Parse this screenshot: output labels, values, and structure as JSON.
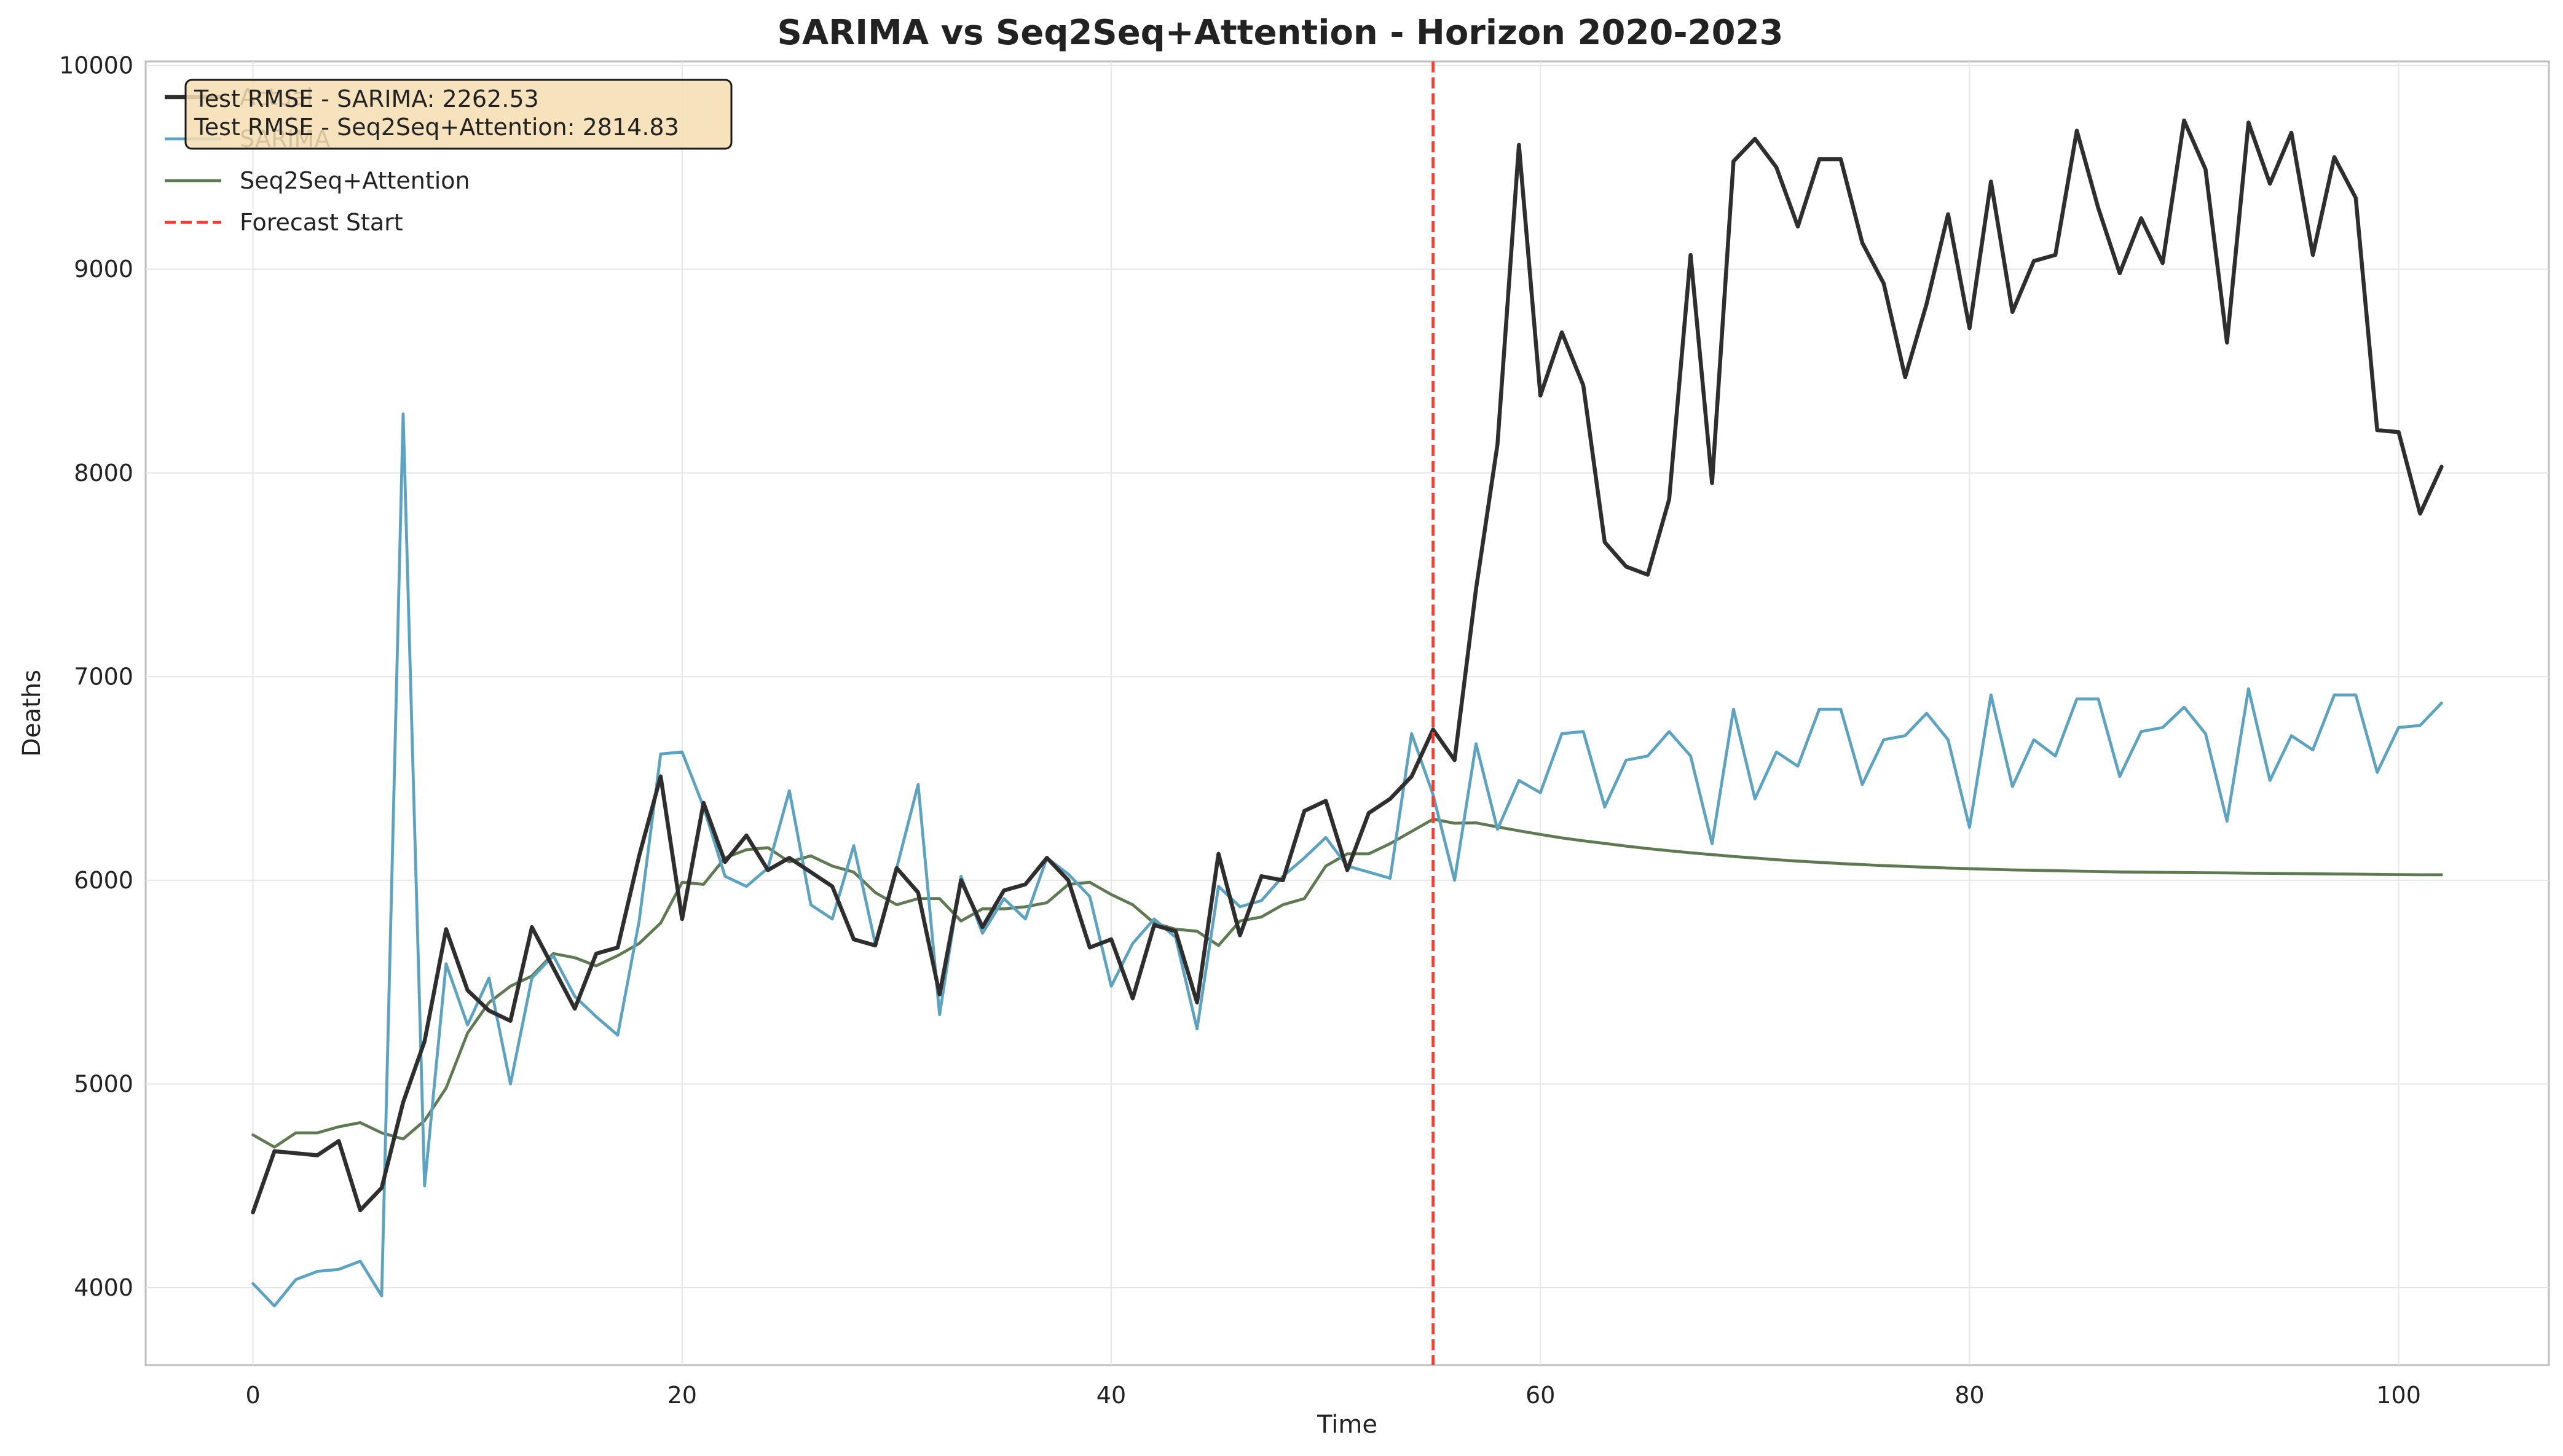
{
  "chart_data": {
    "type": "line",
    "title": "SARIMA vs Seq2Seq+Attention - Horizon 2020-2023",
    "xlabel": "Time",
    "ylabel": "Deaths",
    "xlim": [
      -5,
      107
    ],
    "ylim": [
      3620,
      10020
    ],
    "xticks": [
      0,
      20,
      40,
      60,
      80,
      100
    ],
    "yticks": [
      4000,
      5000,
      6000,
      7000,
      8000,
      9000,
      10000
    ],
    "grid": true,
    "legend_position": "top-left",
    "info_box": [
      "Test RMSE - SARIMA: 2262.53",
      "Test RMSE - Seq2Seq+Attention: 2814.83"
    ],
    "vline": {
      "x": 55,
      "name": "Forecast Start",
      "color": "#ff3b30",
      "style": "dashed"
    },
    "series": [
      {
        "name": "Actual",
        "color": "#2e2e2e",
        "values": [
          4370,
          4670,
          4660,
          4650,
          4720,
          4380,
          4490,
          4910,
          5210,
          5760,
          5460,
          5360,
          5310,
          5770,
          5570,
          5370,
          5640,
          5670,
          6120,
          6510,
          5810,
          6380,
          6090,
          6220,
          6050,
          6110,
          6040,
          5970,
          5710,
          5680,
          6060,
          5940,
          5440,
          6000,
          5770,
          5950,
          5980,
          6110,
          6000,
          5670,
          5710,
          5420,
          5780,
          5750,
          5400,
          6130,
          5730,
          6020,
          6000,
          6340,
          6390,
          6050,
          6330,
          6400,
          6510,
          6740,
          6590,
          7430,
          8140,
          9610,
          8380,
          8690,
          8430,
          7660,
          7540,
          7500,
          7870,
          9070,
          7950,
          9530,
          9640,
          9500,
          9210,
          9540,
          9540,
          9130,
          8930,
          8470,
          8830,
          9270,
          8710,
          9430,
          8790,
          9040,
          9070,
          9680,
          9300,
          8980,
          9250,
          9030,
          9730,
          9490,
          8640,
          9720,
          9420,
          9670,
          9070,
          9550,
          9350,
          8210,
          8200,
          7800,
          8030
        ]
      },
      {
        "name": "SARIMA",
        "color": "#5ba3c0",
        "values": [
          4020,
          3910,
          4040,
          4080,
          4090,
          4130,
          3960,
          8290,
          4500,
          5590,
          5290,
          5520,
          5000,
          5520,
          5630,
          5430,
          5330,
          5240,
          5800,
          6620,
          6630,
          6360,
          6020,
          5970,
          6060,
          6440,
          5880,
          5810,
          6170,
          5690,
          6060,
          6470,
          5340,
          6020,
          5740,
          5910,
          5810,
          6110,
          6030,
          5920,
          5480,
          5690,
          5810,
          5720,
          5270,
          5970,
          5870,
          5900,
          6020,
          6110,
          6210,
          6070,
          6040,
          6010,
          6720,
          6420,
          6000,
          6670,
          6250,
          6490,
          6430,
          6720,
          6730,
          6360,
          6590,
          6610,
          6730,
          6610,
          6180,
          6840,
          6400,
          6630,
          6560,
          6840,
          6840,
          6470,
          6690,
          6710,
          6820,
          6690,
          6260,
          6910,
          6460,
          6690,
          6610,
          6890,
          6890,
          6510,
          6730,
          6750,
          6850,
          6720,
          6290,
          6940,
          6490,
          6710,
          6640,
          6910,
          6910,
          6530,
          6750,
          6760,
          6870
        ]
      },
      {
        "name": "Seq2Seq+Attention",
        "color": "#5f7a52",
        "values": [
          4750,
          4690,
          4760,
          4760,
          4790,
          4810,
          4760,
          4730,
          4820,
          4980,
          5250,
          5400,
          5480,
          5530,
          5640,
          5620,
          5580,
          5630,
          5690,
          5790,
          5990,
          5980,
          6110,
          6150,
          6160,
          6090,
          6120,
          6070,
          6040,
          5940,
          5880,
          5910,
          5910,
          5800,
          5860,
          5860,
          5870,
          5890,
          5980,
          5990,
          5930,
          5880,
          5790,
          5760,
          5750,
          5680,
          5800,
          5820,
          5880,
          5910,
          6070,
          6130,
          6130,
          6180,
          6240,
          6300,
          6280,
          6282,
          6262,
          6243,
          6225,
          6208,
          6194,
          6181,
          6168,
          6156,
          6145,
          6135,
          6126,
          6117,
          6109,
          6101,
          6094,
          6088,
          6082,
          6077,
          6072,
          6068,
          6064,
          6060,
          6057,
          6054,
          6051,
          6049,
          6047,
          6045,
          6043,
          6041,
          6040,
          6039,
          6038,
          6037,
          6036,
          6035,
          6034,
          6033,
          6032,
          6031,
          6030,
          6029,
          6028,
          6027,
          6027
        ]
      }
    ]
  }
}
